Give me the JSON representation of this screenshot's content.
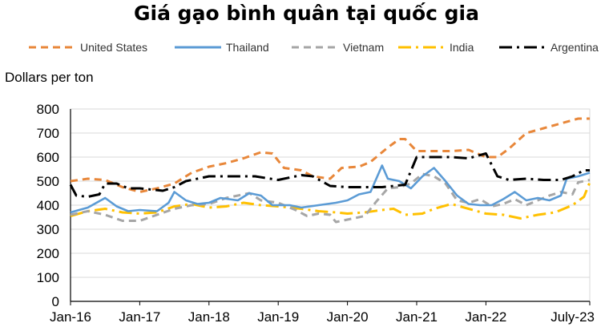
{
  "chart_data": {
    "type": "line",
    "title": "Giá gạo bình quân tại quốc gia",
    "ylabel": "Dollars per  ton",
    "xlabel": "",
    "ylim": [
      0,
      800
    ],
    "yticks": [
      0,
      100,
      200,
      300,
      400,
      500,
      600,
      700,
      800
    ],
    "grid": "horizontal",
    "legend_position": "top",
    "xaxis": {
      "start": "Jan-16",
      "end": "Jul-23",
      "tick_labels": [
        "Jan-16",
        "Jan-17",
        "Jan-18",
        "Jan-19",
        "Jan-20",
        "Jan-21",
        "Jan-22",
        "July-23"
      ],
      "tick_months": [
        0,
        12,
        24,
        36,
        48,
        60,
        72,
        90
      ]
    },
    "series": [
      {
        "name": "United States",
        "color": "#E8873A",
        "style": "dashed",
        "points": [
          [
            0,
            500
          ],
          [
            3,
            510
          ],
          [
            6,
            505
          ],
          [
            9,
            475
          ],
          [
            12,
            455
          ],
          [
            15,
            470
          ],
          [
            18,
            490
          ],
          [
            21,
            535
          ],
          [
            24,
            560
          ],
          [
            27,
            575
          ],
          [
            30,
            595
          ],
          [
            33,
            620
          ],
          [
            35,
            615
          ],
          [
            37,
            555
          ],
          [
            40,
            545
          ],
          [
            42,
            520
          ],
          [
            45,
            510
          ],
          [
            47,
            555
          ],
          [
            50,
            560
          ],
          [
            52,
            580
          ],
          [
            55,
            640
          ],
          [
            57,
            675
          ],
          [
            58,
            675
          ],
          [
            60,
            625
          ],
          [
            63,
            625
          ],
          [
            66,
            625
          ],
          [
            69,
            630
          ],
          [
            72,
            600
          ],
          [
            74,
            600
          ],
          [
            76,
            635
          ],
          [
            79,
            700
          ],
          [
            82,
            720
          ],
          [
            85,
            740
          ],
          [
            88,
            760
          ],
          [
            90,
            760
          ]
        ]
      },
      {
        "name": "Thailand",
        "color": "#5B9BD5",
        "style": "solid",
        "points": [
          [
            0,
            370
          ],
          [
            3,
            390
          ],
          [
            6,
            430
          ],
          [
            8,
            395
          ],
          [
            10,
            375
          ],
          [
            12,
            380
          ],
          [
            15,
            375
          ],
          [
            17,
            410
          ],
          [
            18,
            455
          ],
          [
            20,
            420
          ],
          [
            22,
            405
          ],
          [
            24,
            410
          ],
          [
            26,
            430
          ],
          [
            29,
            420
          ],
          [
            31,
            450
          ],
          [
            33,
            440
          ],
          [
            35,
            400
          ],
          [
            38,
            400
          ],
          [
            40,
            390
          ],
          [
            43,
            400
          ],
          [
            46,
            410
          ],
          [
            48,
            420
          ],
          [
            50,
            445
          ],
          [
            52,
            455
          ],
          [
            54,
            565
          ],
          [
            55,
            510
          ],
          [
            57,
            500
          ],
          [
            59,
            470
          ],
          [
            61,
            520
          ],
          [
            63,
            555
          ],
          [
            65,
            500
          ],
          [
            67,
            440
          ],
          [
            69,
            405
          ],
          [
            71,
            400
          ],
          [
            73,
            400
          ],
          [
            75,
            425
          ],
          [
            77,
            455
          ],
          [
            79,
            420
          ],
          [
            81,
            430
          ],
          [
            83,
            420
          ],
          [
            85,
            440
          ],
          [
            86,
            510
          ],
          [
            88,
            520
          ],
          [
            90,
            535
          ]
        ]
      },
      {
        "name": "Vietnam",
        "color": "#A6A6A6",
        "style": "dashed",
        "points": [
          [
            0,
            360
          ],
          [
            3,
            375
          ],
          [
            6,
            360
          ],
          [
            9,
            335
          ],
          [
            12,
            335
          ],
          [
            15,
            360
          ],
          [
            18,
            385
          ],
          [
            21,
            400
          ],
          [
            24,
            405
          ],
          [
            27,
            430
          ],
          [
            31,
            450
          ],
          [
            33,
            420
          ],
          [
            36,
            410
          ],
          [
            39,
            380
          ],
          [
            41,
            355
          ],
          [
            43,
            365
          ],
          [
            45,
            360
          ],
          [
            46,
            330
          ],
          [
            49,
            345
          ],
          [
            51,
            355
          ],
          [
            53,
            415
          ],
          [
            55,
            470
          ],
          [
            57,
            475
          ],
          [
            59,
            490
          ],
          [
            61,
            530
          ],
          [
            63,
            520
          ],
          [
            65,
            490
          ],
          [
            67,
            420
          ],
          [
            69,
            410
          ],
          [
            71,
            425
          ],
          [
            73,
            395
          ],
          [
            75,
            405
          ],
          [
            77,
            425
          ],
          [
            79,
            400
          ],
          [
            81,
            420
          ],
          [
            83,
            440
          ],
          [
            85,
            455
          ],
          [
            87,
            445
          ],
          [
            88,
            495
          ],
          [
            90,
            505
          ]
        ]
      },
      {
        "name": "India",
        "color": "#FFC000",
        "style": "dashdot",
        "points": [
          [
            0,
            355
          ],
          [
            3,
            375
          ],
          [
            6,
            385
          ],
          [
            9,
            370
          ],
          [
            12,
            365
          ],
          [
            15,
            370
          ],
          [
            18,
            395
          ],
          [
            21,
            405
          ],
          [
            24,
            390
          ],
          [
            27,
            395
          ],
          [
            30,
            410
          ],
          [
            33,
            400
          ],
          [
            36,
            395
          ],
          [
            40,
            385
          ],
          [
            43,
            375
          ],
          [
            46,
            370
          ],
          [
            48,
            365
          ],
          [
            51,
            370
          ],
          [
            54,
            380
          ],
          [
            56,
            385
          ],
          [
            58,
            360
          ],
          [
            61,
            365
          ],
          [
            63,
            385
          ],
          [
            66,
            405
          ],
          [
            69,
            385
          ],
          [
            72,
            365
          ],
          [
            75,
            360
          ],
          [
            78,
            345
          ],
          [
            81,
            360
          ],
          [
            84,
            370
          ],
          [
            87,
            400
          ],
          [
            89,
            435
          ],
          [
            90,
            495
          ]
        ]
      },
      {
        "name": "Argentina",
        "color": "#000000",
        "style": "dashdot",
        "points": [
          [
            0,
            485
          ],
          [
            1,
            440
          ],
          [
            3,
            435
          ],
          [
            5,
            445
          ],
          [
            6,
            490
          ],
          [
            8,
            490
          ],
          [
            10,
            470
          ],
          [
            12,
            470
          ],
          [
            14,
            465
          ],
          [
            16,
            460
          ],
          [
            18,
            475
          ],
          [
            20,
            500
          ],
          [
            24,
            520
          ],
          [
            28,
            520
          ],
          [
            32,
            520
          ],
          [
            36,
            505
          ],
          [
            40,
            525
          ],
          [
            42,
            520
          ],
          [
            45,
            480
          ],
          [
            48,
            475
          ],
          [
            51,
            475
          ],
          [
            54,
            475
          ],
          [
            56,
            480
          ],
          [
            58,
            485
          ],
          [
            60,
            600
          ],
          [
            63,
            600
          ],
          [
            66,
            600
          ],
          [
            69,
            595
          ],
          [
            72,
            615
          ],
          [
            74,
            520
          ],
          [
            76,
            505
          ],
          [
            79,
            510
          ],
          [
            82,
            505
          ],
          [
            85,
            505
          ],
          [
            87,
            520
          ],
          [
            89,
            545
          ],
          [
            90,
            545
          ]
        ]
      }
    ]
  }
}
